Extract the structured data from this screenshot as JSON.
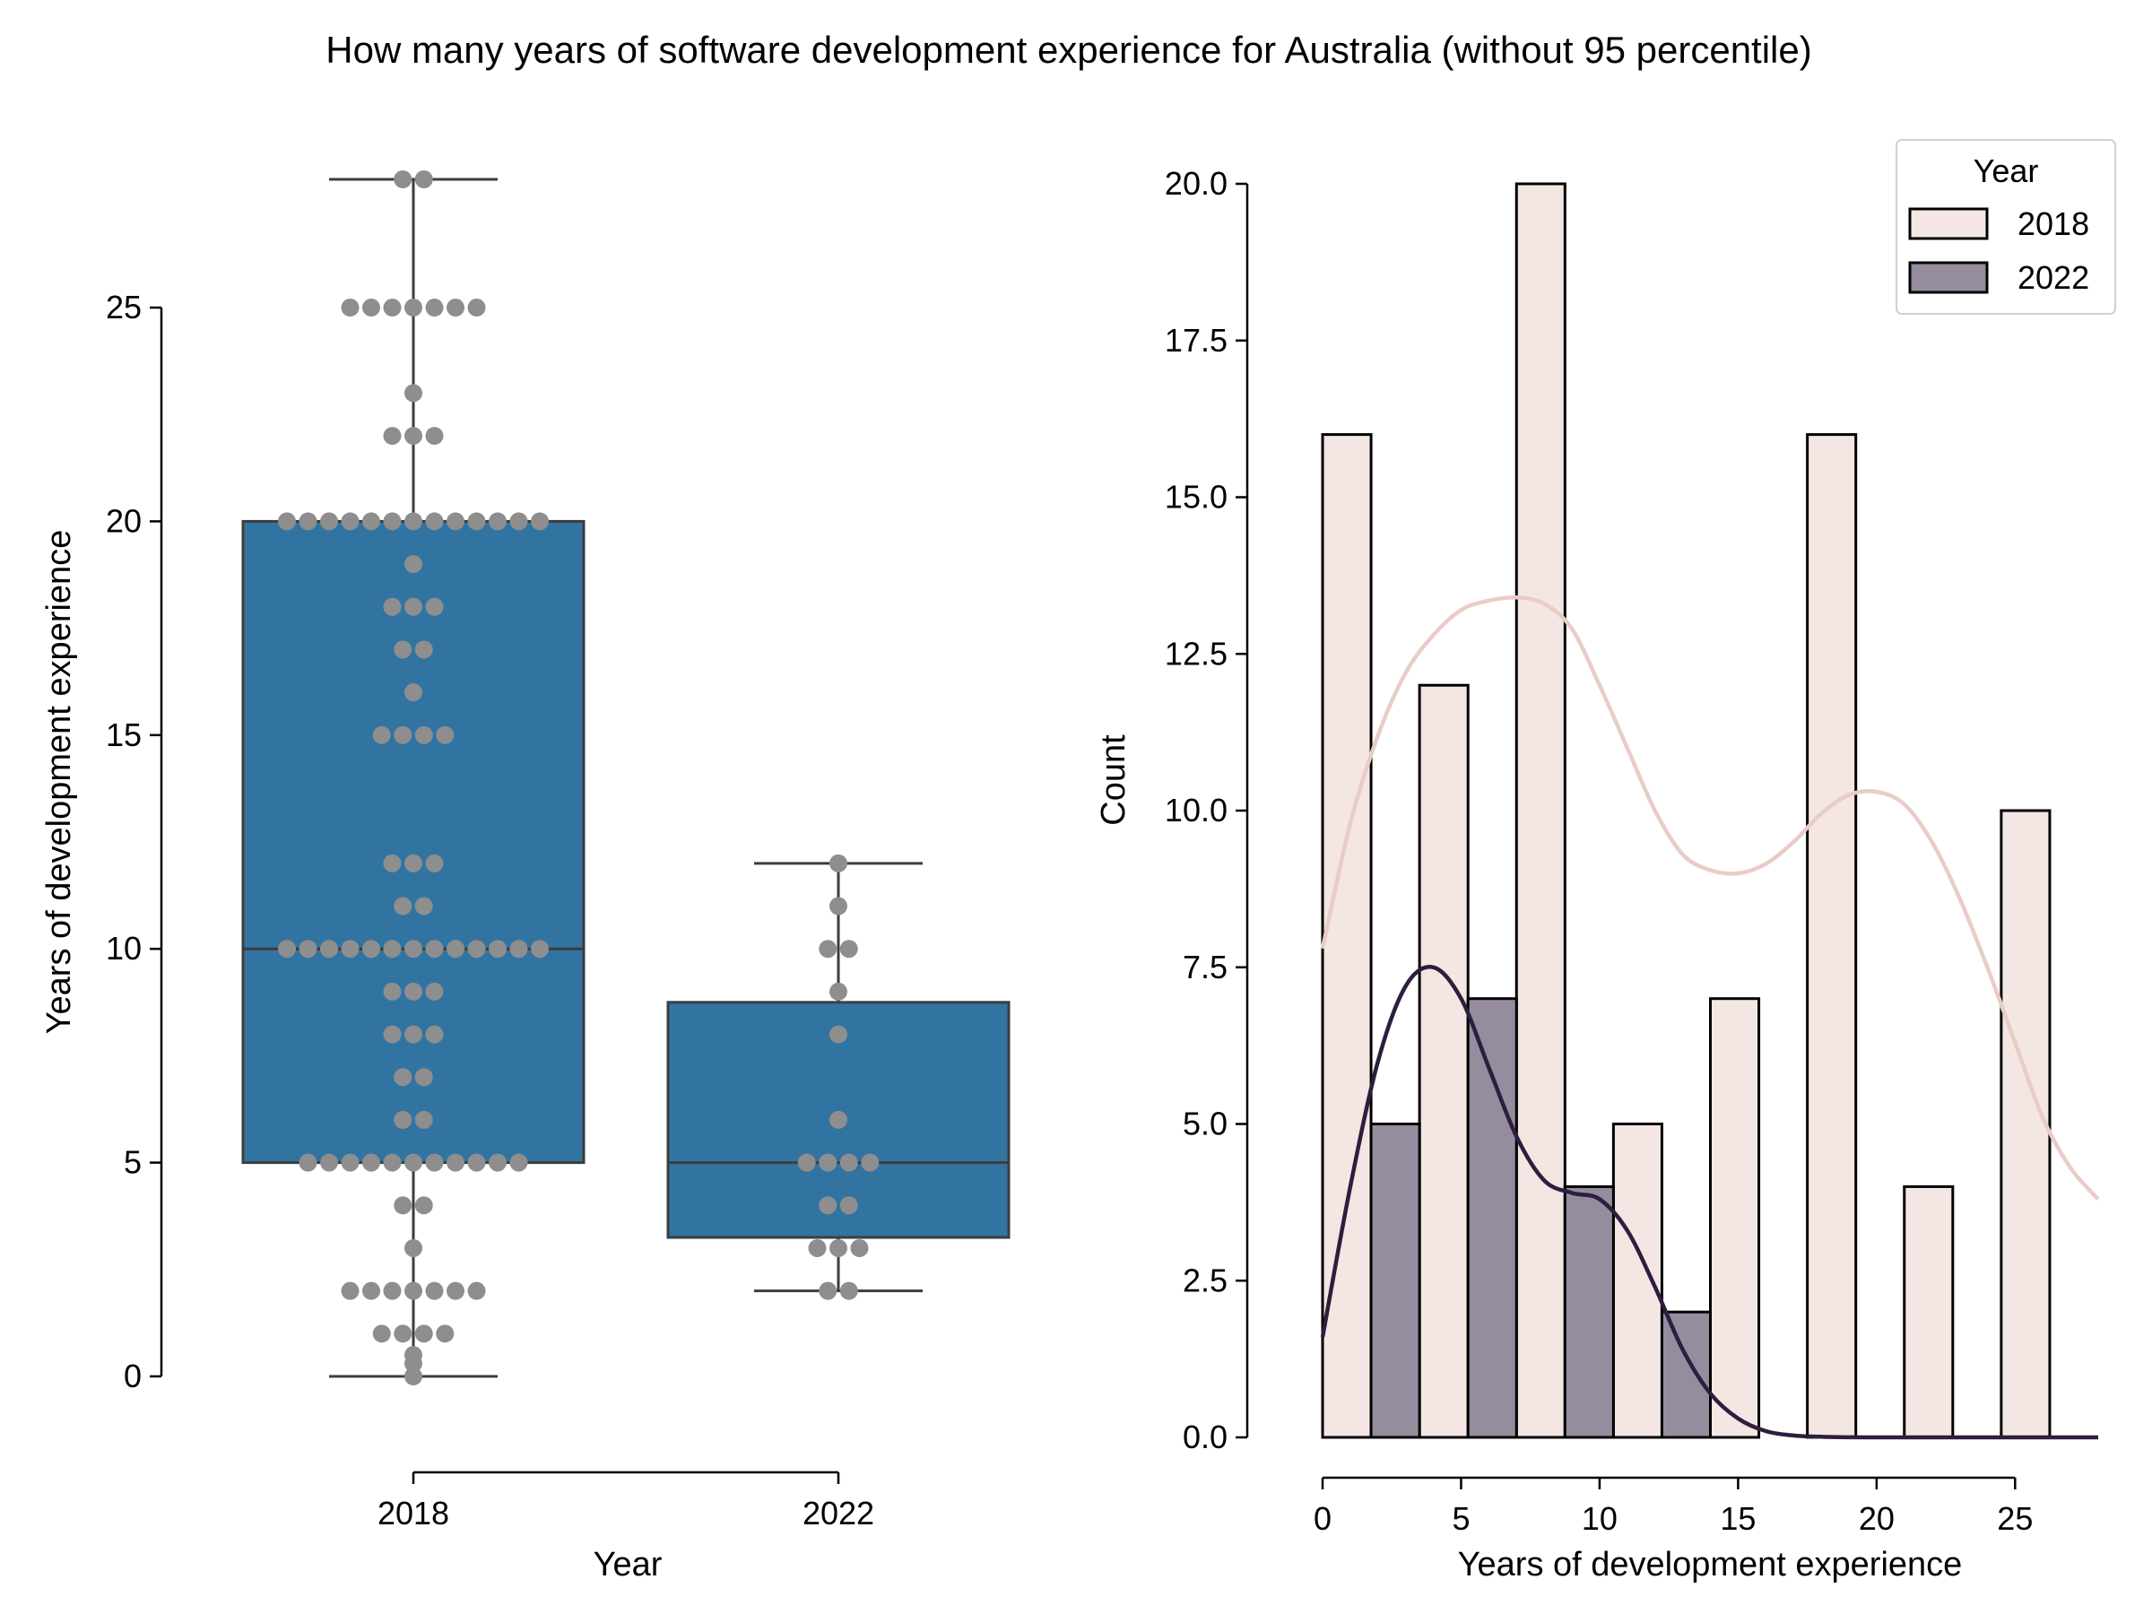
{
  "title": "How many years of software development experience for Australia (without 95 percentile)",
  "colors": {
    "box_fill": "#3274a1",
    "box_edge": "#3d3d3d",
    "swarm_point": "#8e8e8e",
    "hist_2018_fill": "#f4e6e3",
    "hist_2022_fill": "#958c9d",
    "bar_edge": "#000000",
    "kde_2018": "#e8cdc7",
    "kde_2022": "#2d1e3e"
  },
  "chart_data": [
    {
      "type": "box",
      "xlabel": "Year",
      "ylabel": "Years of development experience",
      "categories": [
        "2018",
        "2022"
      ],
      "ylim": [
        0,
        28
      ],
      "yticks": [
        "0",
        "5",
        "10",
        "15",
        "20",
        "25"
      ],
      "boxes": [
        {
          "category": "2018",
          "whisker_low": 0,
          "q1": 5,
          "median": 10,
          "q3": 20,
          "whisker_high": 28
        },
        {
          "category": "2022",
          "whisker_low": 2,
          "q1": 3.25,
          "median": 5,
          "q3": 8.75,
          "whisker_high": 12
        }
      ],
      "swarm": [
        {
          "category": "2018",
          "points": [
            [
              28,
              2
            ],
            [
              25,
              7
            ],
            [
              23,
              1
            ],
            [
              22,
              3
            ],
            [
              20,
              13
            ],
            [
              19,
              1
            ],
            [
              18,
              3
            ],
            [
              17,
              2
            ],
            [
              16,
              1
            ],
            [
              15,
              4
            ],
            [
              12,
              3
            ],
            [
              11,
              2
            ],
            [
              10,
              13
            ],
            [
              9,
              3
            ],
            [
              8,
              3
            ],
            [
              7,
              2
            ],
            [
              6,
              2
            ],
            [
              5,
              11
            ],
            [
              4,
              2
            ],
            [
              3,
              1
            ],
            [
              2,
              7
            ],
            [
              1,
              4
            ],
            [
              0.5,
              1
            ],
            [
              0.3,
              1
            ],
            [
              0,
              1
            ]
          ]
        },
        {
          "category": "2022",
          "points": [
            [
              12,
              1
            ],
            [
              11,
              1
            ],
            [
              10,
              2
            ],
            [
              9,
              1
            ],
            [
              8,
              1
            ],
            [
              6,
              1
            ],
            [
              5,
              4
            ],
            [
              4,
              2
            ],
            [
              3,
              3
            ],
            [
              2,
              2
            ]
          ]
        }
      ]
    },
    {
      "type": "bar",
      "subtype": "histogram",
      "xlabel": "Years of development experience",
      "ylabel": "Count",
      "xlim": [
        0,
        28
      ],
      "ylim": [
        0,
        20
      ],
      "xticks": [
        "0",
        "5",
        "10",
        "15",
        "20",
        "25"
      ],
      "yticks": [
        "0.0",
        "2.5",
        "5.0",
        "7.5",
        "10.0",
        "12.5",
        "15.0",
        "17.5",
        "20.0"
      ],
      "legend": {
        "title": "Year",
        "position": "top-right",
        "entries": [
          "2018",
          "2022"
        ]
      },
      "series": [
        {
          "name": "2018",
          "bars": [
            [
              0,
              1.75,
              16
            ],
            [
              3.5,
              5.25,
              12
            ],
            [
              7,
              8.75,
              20
            ],
            [
              10.5,
              12.25,
              5
            ],
            [
              14,
              15.75,
              7
            ],
            [
              17.5,
              19.25,
              16
            ],
            [
              21,
              22.75,
              4
            ],
            [
              24.5,
              26.25,
              10
            ]
          ],
          "kde": [
            [
              0,
              7.8
            ],
            [
              1,
              9.8
            ],
            [
              2,
              11.2
            ],
            [
              3,
              12.2
            ],
            [
              4,
              12.8
            ],
            [
              5,
              13.2
            ],
            [
              6,
              13.35
            ],
            [
              7,
              13.4
            ],
            [
              8,
              13.3
            ],
            [
              9,
              12.9
            ],
            [
              10,
              12.0
            ],
            [
              11,
              11.0
            ],
            [
              12,
              10.0
            ],
            [
              13,
              9.3
            ],
            [
              14,
              9.05
            ],
            [
              15,
              9.0
            ],
            [
              16,
              9.15
            ],
            [
              17,
              9.5
            ],
            [
              18,
              9.95
            ],
            [
              19,
              10.25
            ],
            [
              20,
              10.3
            ],
            [
              21,
              10.1
            ],
            [
              22,
              9.5
            ],
            [
              23,
              8.6
            ],
            [
              24,
              7.5
            ],
            [
              25,
              6.3
            ],
            [
              26,
              5.1
            ],
            [
              27,
              4.3
            ],
            [
              28,
              3.8
            ]
          ]
        },
        {
          "name": "2022",
          "bars": [
            [
              1.75,
              3.5,
              5
            ],
            [
              5.25,
              7,
              7
            ],
            [
              8.75,
              10.5,
              4
            ],
            [
              12.25,
              14,
              2
            ]
          ],
          "kde": [
            [
              0,
              1.6
            ],
            [
              1,
              4.0
            ],
            [
              2,
              6.0
            ],
            [
              3,
              7.2
            ],
            [
              4,
              7.5
            ],
            [
              5,
              7.0
            ],
            [
              6,
              5.9
            ],
            [
              7,
              4.8
            ],
            [
              8,
              4.1
            ],
            [
              9,
              3.9
            ],
            [
              10,
              3.8
            ],
            [
              11,
              3.3
            ],
            [
              12,
              2.4
            ],
            [
              13,
              1.4
            ],
            [
              14,
              0.7
            ],
            [
              15,
              0.3
            ],
            [
              16,
              0.1
            ],
            [
              17,
              0.03
            ],
            [
              18,
              0.01
            ],
            [
              20,
              0
            ],
            [
              28,
              0
            ]
          ]
        }
      ]
    }
  ]
}
